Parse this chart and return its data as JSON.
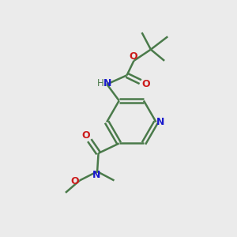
{
  "bg_color": "#ebebeb",
  "bond_color": "#4a7a4a",
  "N_color": "#1a1acc",
  "O_color": "#cc1a1a",
  "C_color": "#4a7a4a",
  "line_width": 1.8,
  "figsize": [
    3.0,
    3.0
  ],
  "dpi": 100,
  "xlim": [
    0,
    10
  ],
  "ylim": [
    0,
    10
  ]
}
